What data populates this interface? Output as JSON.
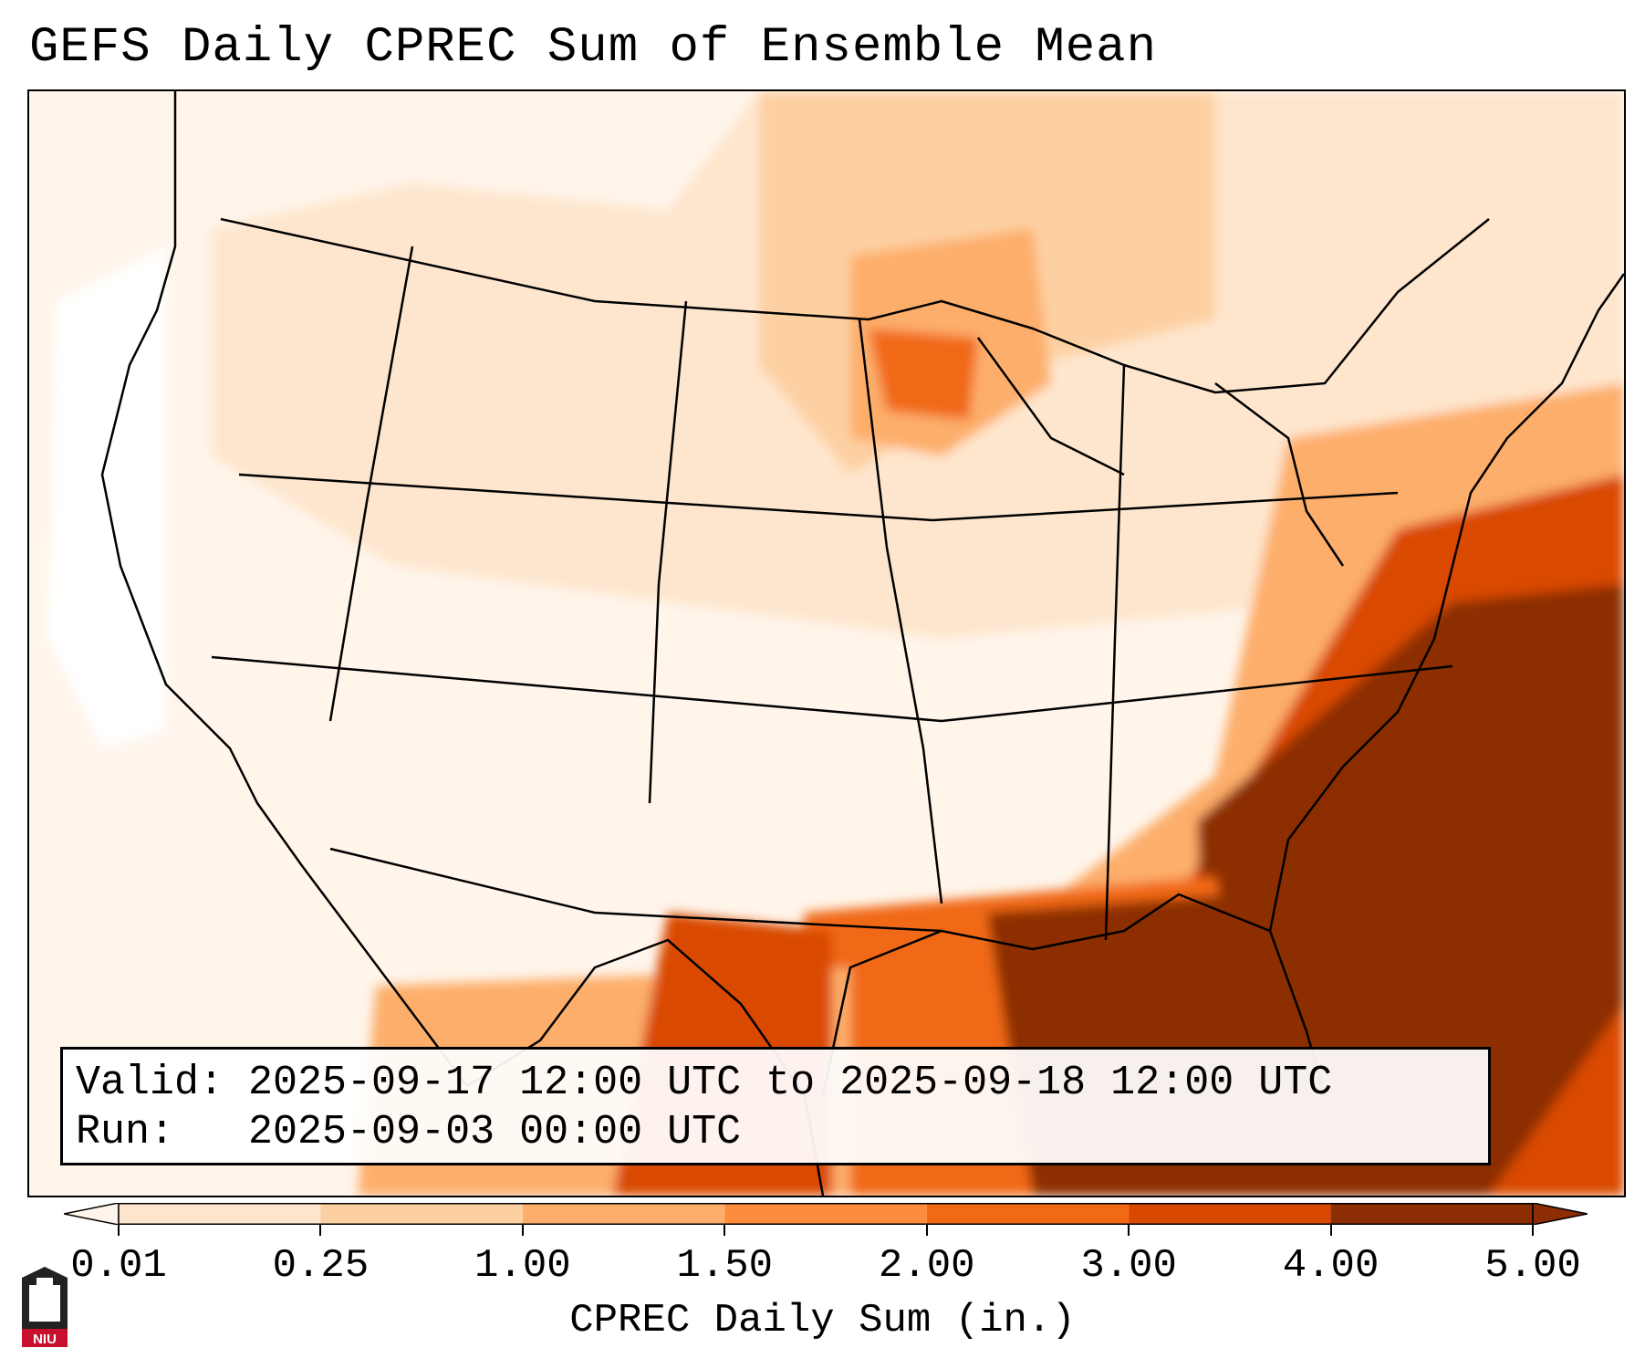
{
  "title": "GEFS Daily CPREC Sum of Ensemble Mean",
  "info": {
    "valid_line": "Valid: 2025-09-17 12:00 UTC to 2025-09-18 12:00 UTC",
    "run_line": "Run:   2025-09-03 00:00 UTC"
  },
  "colorbar": {
    "label": "CPREC Daily Sum (in.)",
    "ticks": [
      "0.01",
      "0.25",
      "1.00",
      "1.50",
      "2.00",
      "3.00",
      "4.00",
      "5.00"
    ],
    "colors": [
      "#fff5eb",
      "#fee6ce",
      "#fdd0a2",
      "#fdae6b",
      "#fd8d3c",
      "#f16913",
      "#d94801",
      "#8c2d04"
    ],
    "extend": "both"
  },
  "logo": {
    "text": "NIU",
    "color": "#c8102e"
  },
  "precip_levels": {
    "none": "#ffffff",
    "very_light": "#fff5eb",
    "light": "#fee6ce",
    "moderate": "#fdd0a2",
    "heavy": "#fd8d3c",
    "very_heavy": "#d94801",
    "extreme": "#8c2d04"
  }
}
